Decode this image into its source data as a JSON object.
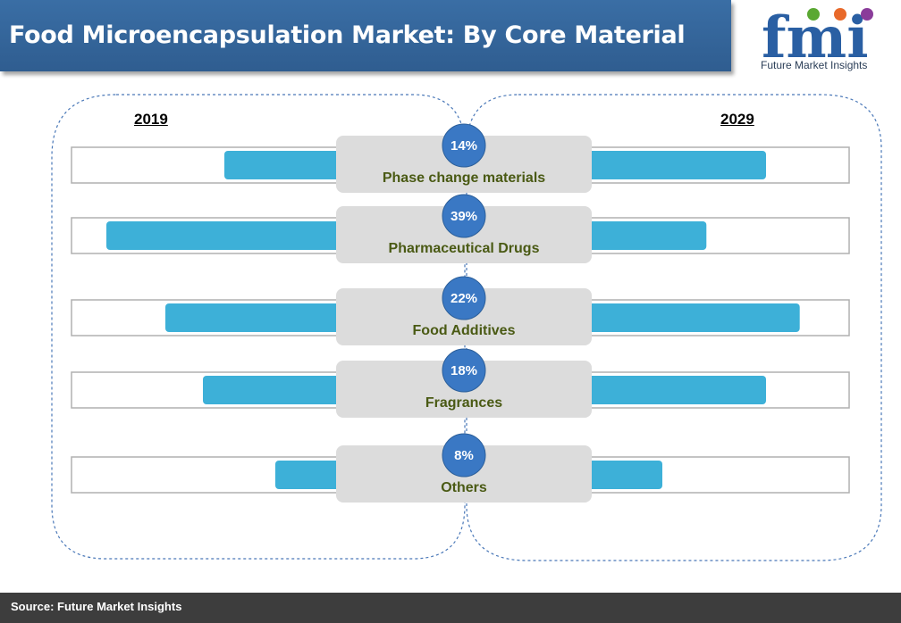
{
  "header": {
    "title": "Food Microencapsulation Market: By Core Material"
  },
  "logo": {
    "letters": "fmi",
    "caption": "Future Market Insights",
    "colors": {
      "letters": "#2a5fa3",
      "dot_green": "#5aa832",
      "dot_orange": "#e8692a",
      "dot_purple": "#8a3c9a"
    }
  },
  "footer": {
    "source": "Source: Future Market Insights"
  },
  "colors": {
    "bar_fill": "#3db0d8",
    "bubble_fill": "#3a78c4",
    "label_box": "#dcdcdc",
    "label_text": "#4a5a14"
  },
  "chart_data": {
    "type": "bar",
    "left_year": "2019",
    "right_year": "2029",
    "categories": [
      "Phase change materials",
      "Pharmaceutical Drugs",
      "Food Additives",
      "Fragrances",
      "Others"
    ],
    "shares": [
      "14%",
      "39%",
      "22%",
      "18%",
      "8%"
    ],
    "series": [
      {
        "name": "2019",
        "values": [
          0.43,
          0.87,
          0.65,
          0.51,
          0.24
        ]
      },
      {
        "name": "2029",
        "values": [
          0.7,
          0.47,
          0.83,
          0.7,
          0.3
        ]
      }
    ]
  }
}
